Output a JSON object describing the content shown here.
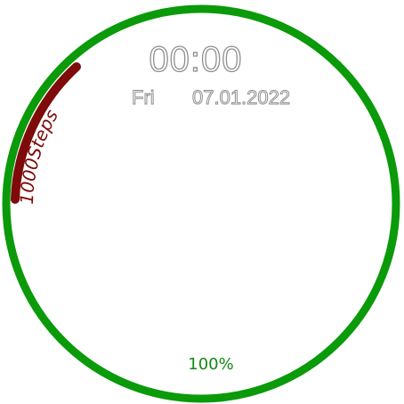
{
  "watchface": {
    "time": "00:00",
    "day": "Fri",
    "date": "07.01.2022",
    "steps_label": "1000Steps",
    "battery": "100%"
  },
  "colors": {
    "ring": "#0a9a0a",
    "steps_arc": "#7e0a0a",
    "text_outline": "#8f8f8f",
    "battery_text": "#118a11"
  }
}
